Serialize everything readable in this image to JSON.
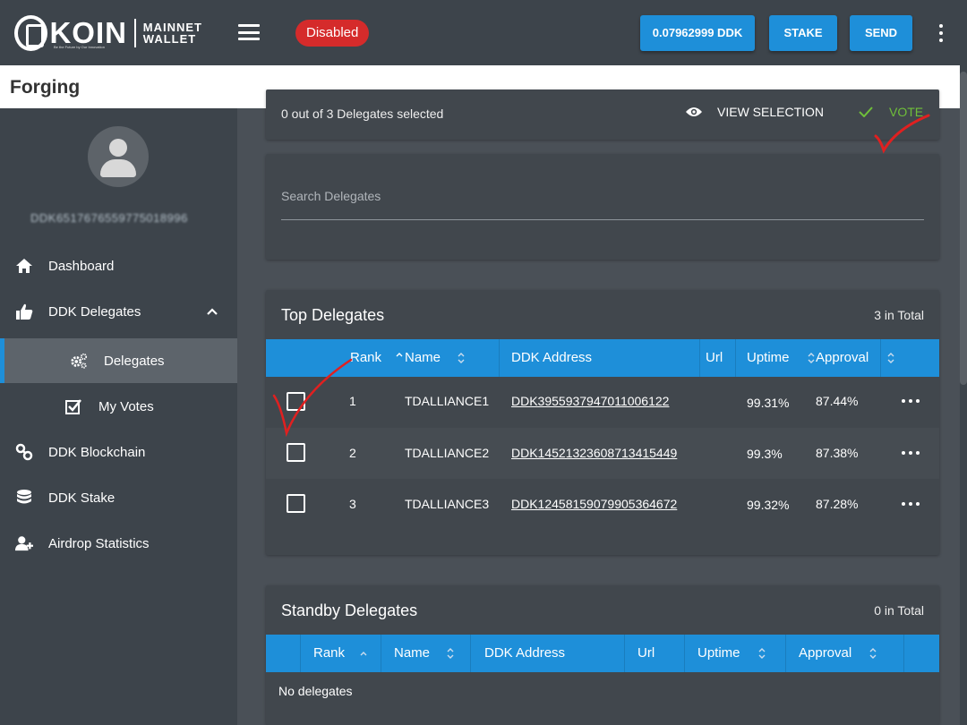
{
  "header": {
    "logo_word": "KOIN",
    "logo_sub_1": "MAINNET",
    "logo_sub_2": "WALLET",
    "logo_tagline": "Be the Future by Our Innovation",
    "status_badge": "Disabled",
    "balance": "0.07962999 DDK",
    "stake_label": "STAKE",
    "send_label": "SEND"
  },
  "page": {
    "title": "Forging"
  },
  "sidebar": {
    "address": "DDK6517676559775018996",
    "items": [
      {
        "label": "Dashboard",
        "icon": "home-icon"
      },
      {
        "label": "DDK Delegates",
        "icon": "thumbs-up-icon"
      },
      {
        "label": "Delegates",
        "icon": "gears-icon"
      },
      {
        "label": "My Votes",
        "icon": "checkbox-icon"
      },
      {
        "label": "DDK Blockchain",
        "icon": "link-icon"
      },
      {
        "label": "DDK Stake",
        "icon": "database-icon"
      },
      {
        "label": "Airdrop Statistics",
        "icon": "user-plus-icon"
      }
    ]
  },
  "selection": {
    "text": "0 out of 3 Delegates selected",
    "view_label": "VIEW SELECTION",
    "vote_label": "VOTE"
  },
  "search": {
    "placeholder": "Search Delegates"
  },
  "top_delegates": {
    "title": "Top Delegates",
    "total": "3 in Total",
    "columns": [
      "Rank",
      "Name",
      "DDK Address",
      "Url",
      "Uptime",
      "Approval"
    ],
    "rows": [
      {
        "rank": "1",
        "name": "TDALLIANCE1",
        "address": "DDK3955937947011006122",
        "url": "",
        "uptime": "99.31%",
        "approval": "87.44%"
      },
      {
        "rank": "2",
        "name": "TDALLIANCE2",
        "address": "DDK14521323608713415449",
        "url": "",
        "uptime": "99.3%",
        "approval": "87.38%"
      },
      {
        "rank": "3",
        "name": "TDALLIANCE3",
        "address": "DDK12458159079905364672",
        "url": "",
        "uptime": "99.32%",
        "approval": "87.28%"
      }
    ]
  },
  "standby_delegates": {
    "title": "Standby Delegates",
    "total": "0 in Total",
    "columns": [
      "Rank",
      "Name",
      "DDK Address",
      "Url",
      "Uptime",
      "Approval"
    ],
    "empty_text": "No delegates"
  },
  "colors": {
    "header_bg": "#3d444b",
    "accent": "#1e8fd9",
    "danger": "#d52b2b",
    "vote_green": "#6fbf3a",
    "annotation_red": "#e02020"
  }
}
